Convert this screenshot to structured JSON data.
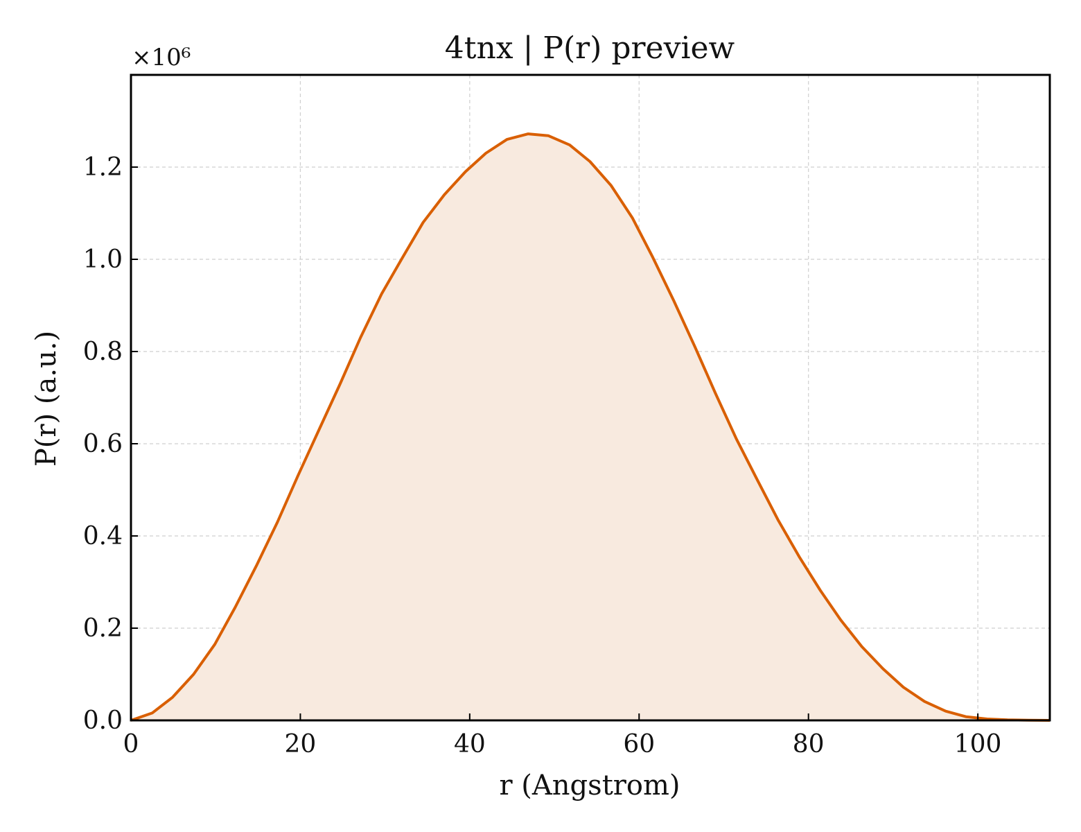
{
  "chart_data": {
    "type": "line",
    "title": "4tnx | P(r) preview",
    "xlabel": "r (Angstrom)",
    "ylabel": "P(r) (a.u.)",
    "y_multiplier_label": "×10⁶",
    "xlim": [
      0,
      108.5
    ],
    "ylim": [
      0,
      1.4
    ],
    "x_ticks": [
      0,
      20,
      40,
      60,
      80,
      100
    ],
    "y_ticks": [
      0.0,
      0.2,
      0.4,
      0.6,
      0.8,
      1.0,
      1.2
    ],
    "x_tick_labels": [
      "0",
      "20",
      "40",
      "60",
      "80",
      "100"
    ],
    "y_tick_labels": [
      "0.0",
      "0.2",
      "0.4",
      "0.6",
      "0.8",
      "1.0",
      "1.2"
    ],
    "grid": true,
    "fill_under": true,
    "line_color": "#d95f02",
    "fill_color": "#f8eadf",
    "x": [
      0,
      2.5,
      4.9,
      7.4,
      9.9,
      12.3,
      14.8,
      17.3,
      19.7,
      22.2,
      24.7,
      27.1,
      29.6,
      32.1,
      34.5,
      37.0,
      39.5,
      41.9,
      44.4,
      46.9,
      49.3,
      51.8,
      54.2,
      56.7,
      59.2,
      61.6,
      64.1,
      66.6,
      69.0,
      71.5,
      74.0,
      76.4,
      78.9,
      81.4,
      83.8,
      86.3,
      88.8,
      91.2,
      93.7,
      96.2,
      98.6,
      101.1,
      103.5,
      106.0,
      108.5
    ],
    "y": [
      0.0,
      0.016,
      0.05,
      0.1,
      0.165,
      0.245,
      0.335,
      0.43,
      0.53,
      0.63,
      0.73,
      0.83,
      0.925,
      1.005,
      1.08,
      1.14,
      1.19,
      1.23,
      1.26,
      1.272,
      1.268,
      1.248,
      1.212,
      1.16,
      1.09,
      1.005,
      0.91,
      0.81,
      0.71,
      0.61,
      0.52,
      0.435,
      0.355,
      0.282,
      0.218,
      0.16,
      0.112,
      0.072,
      0.041,
      0.02,
      0.008,
      0.003,
      0.001,
      0.0003,
      0.0
    ]
  }
}
